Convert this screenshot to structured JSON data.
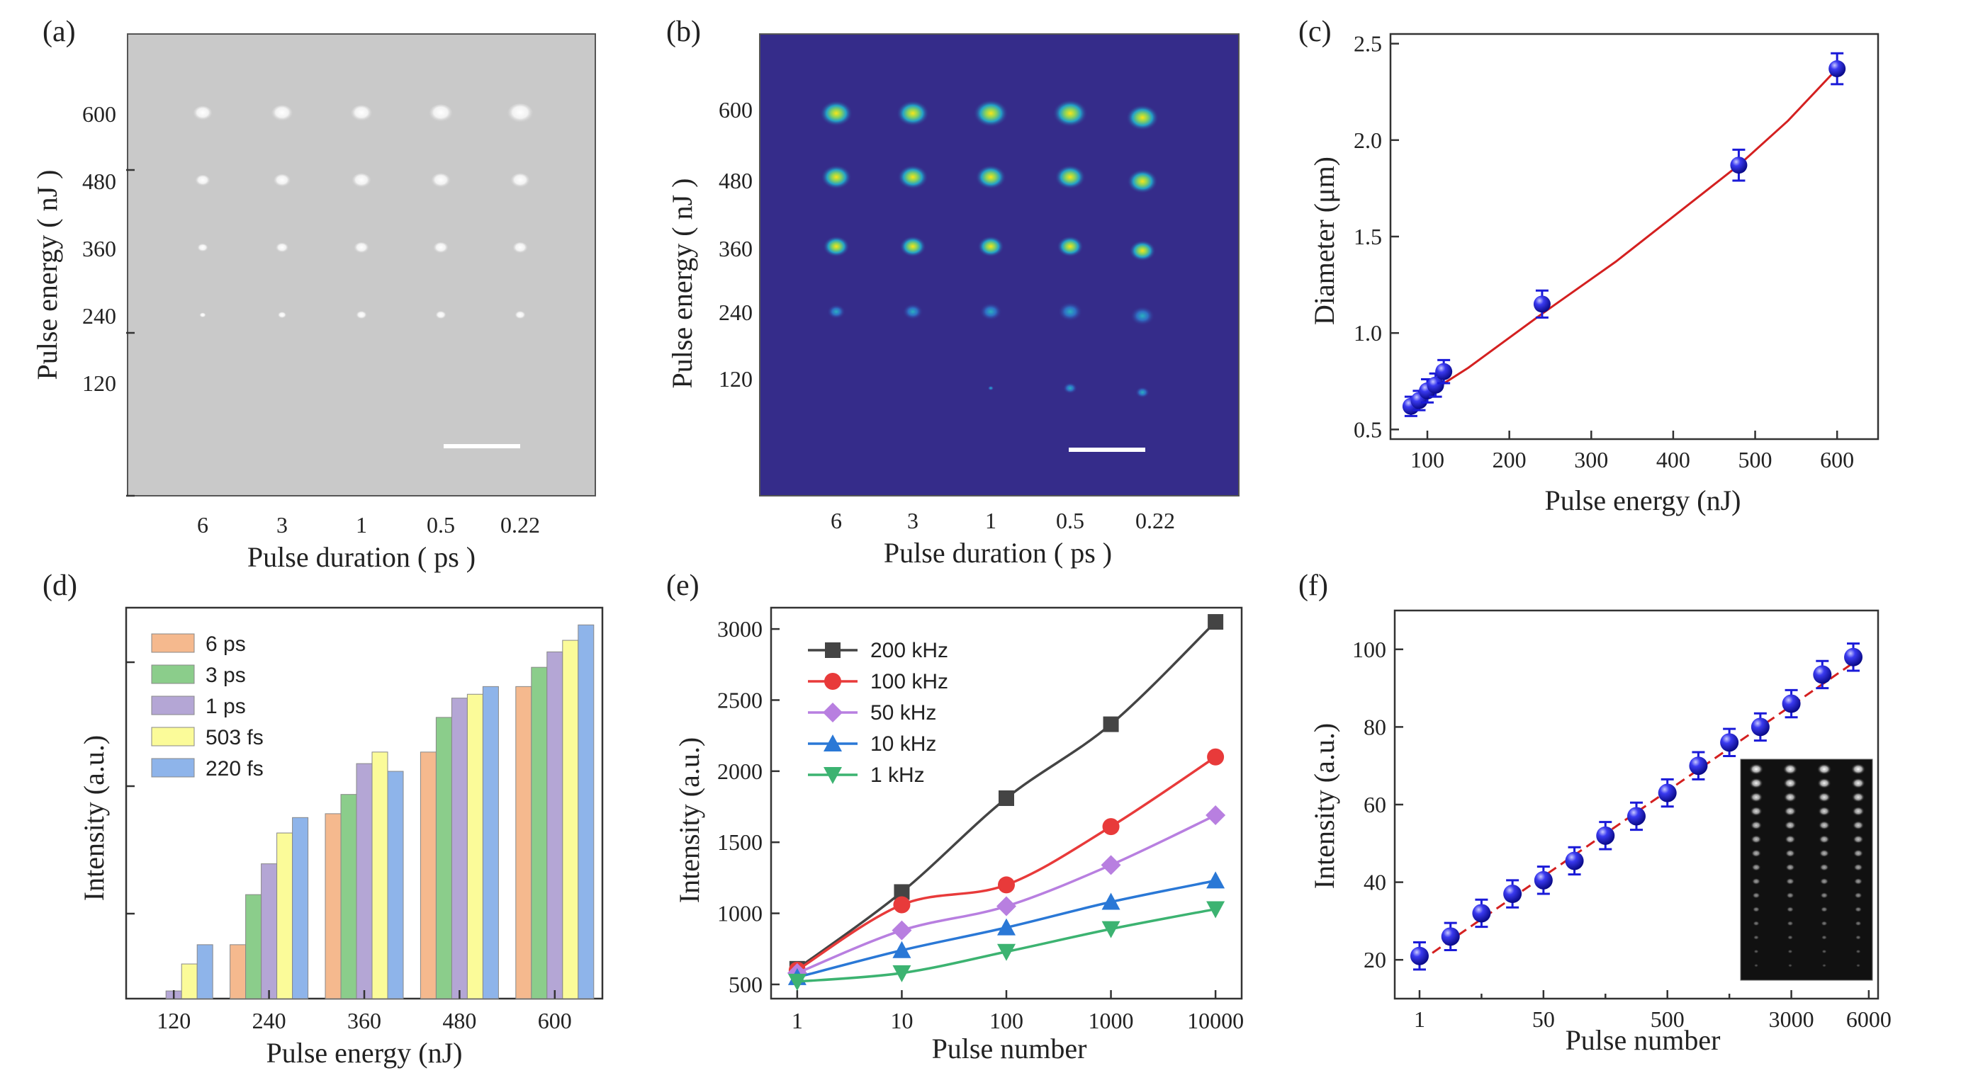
{
  "panels": {
    "a": {
      "tag": "(a)",
      "ylabel": "Pulse energy ( nJ )",
      "xlabel": "Pulse duration ( ps )",
      "yticks": [
        "600",
        "480",
        "360",
        "240",
        "120"
      ],
      "xticks": [
        "6",
        "3",
        "1",
        "0.5",
        "0.22"
      ],
      "background": "#c9c9c9"
    },
    "b": {
      "tag": "(b)",
      "ylabel": "Pulse energy ( nJ )",
      "xlabel": "Pulse duration ( ps )",
      "yticks": [
        "600",
        "480",
        "360",
        "240",
        "120"
      ],
      "xticks": [
        "6",
        "3",
        "1",
        "0.5",
        "0.22"
      ],
      "background": "#352c8a"
    },
    "inset_f": {
      "background": "#111111"
    }
  },
  "chart_data": [
    {
      "id": "c",
      "tag": "(c)",
      "type": "scatter",
      "xlabel": "Pulse energy (nJ)",
      "ylabel": "Diameter (μm)",
      "xlim": [
        55,
        650
      ],
      "ylim": [
        0.45,
        2.55
      ],
      "xticks": [
        100,
        200,
        300,
        400,
        500,
        600
      ],
      "yticks": [
        0.5,
        1.0,
        1.5,
        2.0,
        2.5
      ],
      "xtick_labels": [
        "100",
        "200",
        "300",
        "400",
        "500",
        "600"
      ],
      "ytick_labels": [
        "0.5",
        "1.0",
        "1.5",
        "2.0",
        "2.5"
      ],
      "x": [
        80,
        90,
        100,
        110,
        120,
        240,
        480,
        600
      ],
      "y": [
        0.62,
        0.65,
        0.7,
        0.73,
        0.8,
        1.15,
        1.87,
        2.37
      ],
      "err": [
        0.05,
        0.05,
        0.06,
        0.06,
        0.06,
        0.07,
        0.08,
        0.08
      ],
      "fit": {
        "x": [
          80,
          150,
          240,
          330,
          420,
          480,
          540,
          600
        ],
        "y": [
          0.63,
          0.82,
          1.1,
          1.37,
          1.67,
          1.87,
          2.1,
          2.37
        ],
        "color": "#d42020"
      },
      "marker_color": "#1a1ad8"
    },
    {
      "id": "d",
      "tag": "(d)",
      "type": "bar",
      "xlabel": "Pulse energy (nJ)",
      "ylabel": "Intensity (a.u.)",
      "categories": [
        "120",
        "240",
        "360",
        "480",
        "600"
      ],
      "ylim": [
        0,
        100
      ],
      "series": [
        {
          "name": "6 ps",
          "color": "#f5b98e",
          "values": [
            0,
            14,
            48,
            64,
            81
          ]
        },
        {
          "name": "3 ps",
          "color": "#8bcd8b",
          "values": [
            0,
            27,
            53,
            73,
            86
          ]
        },
        {
          "name": "1 ps",
          "color": "#b4a6d5",
          "values": [
            2,
            35,
            61,
            78,
            90
          ]
        },
        {
          "name": "503 fs",
          "color": "#fbfb99",
          "values": [
            9,
            43,
            64,
            79,
            93
          ]
        },
        {
          "name": "220 fs",
          "color": "#8eb4ea",
          "values": [
            14,
            47,
            59,
            81,
            97
          ]
        }
      ]
    },
    {
      "id": "e",
      "tag": "(e)",
      "type": "line",
      "xlabel": "Pulse number",
      "ylabel": "Intensity (a.u.)",
      "xscale": "log",
      "x": [
        1,
        10,
        100,
        1000,
        10000
      ],
      "xtick_labels": [
        "1",
        "10",
        "100",
        "1000",
        "10000"
      ],
      "ylim": [
        400,
        3150
      ],
      "yticks": [
        500,
        1000,
        1500,
        2000,
        2500,
        3000
      ],
      "ytick_labels": [
        "500",
        "1000",
        "1500",
        "2000",
        "2500",
        "3000"
      ],
      "series": [
        {
          "name": "200 kHz",
          "color": "#444444",
          "marker": "square",
          "values": [
            610,
            1150,
            1810,
            2330,
            3050
          ]
        },
        {
          "name": "100 kHz",
          "color": "#e83a3a",
          "marker": "circle",
          "values": [
            600,
            1060,
            1200,
            1610,
            2100
          ]
        },
        {
          "name": "50 kHz",
          "color": "#b87fe0",
          "marker": "diamond",
          "values": [
            580,
            880,
            1050,
            1340,
            1690
          ]
        },
        {
          "name": "10 kHz",
          "color": "#2a78d6",
          "marker": "triangle-up",
          "values": [
            550,
            740,
            900,
            1080,
            1230
          ]
        },
        {
          "name": "1 kHz",
          "color": "#3cb371",
          "marker": "triangle-down",
          "values": [
            520,
            580,
            730,
            890,
            1030
          ]
        }
      ]
    },
    {
      "id": "f",
      "tag": "(f)",
      "type": "scatter",
      "xlabel": "Pulse number",
      "ylabel": "Intensity (a.u.)",
      "xlim": [
        -0.8,
        14.8
      ],
      "ylim": [
        10,
        110
      ],
      "yticks": [
        20,
        40,
        60,
        80,
        100
      ],
      "ytick_labels": [
        "20",
        "40",
        "60",
        "80",
        "100"
      ],
      "xtick_positions": [
        0,
        4,
        8,
        12,
        14.5
      ],
      "xtick_labels": [
        "1",
        "50",
        "500",
        "3000",
        "6000"
      ],
      "minor_xtick_positions": [
        2,
        6,
        10
      ],
      "x": [
        0,
        1,
        2,
        3,
        4,
        5,
        6,
        7,
        8,
        9,
        10,
        11,
        12,
        13,
        14
      ],
      "y": [
        21,
        26,
        32,
        37,
        40.5,
        45.5,
        52,
        57,
        63,
        70,
        76,
        80,
        86,
        93.5,
        98
      ],
      "err": [
        3.5,
        3.5,
        3.5,
        3.5,
        3.5,
        3.5,
        3.5,
        3.5,
        3.5,
        3.5,
        3.5,
        3.5,
        3.5,
        3.5,
        3.5
      ],
      "fit": {
        "x": [
          0,
          14
        ],
        "y": [
          19.5,
          96.5
        ],
        "color": "#d42020"
      },
      "marker_color": "#1a1ad8"
    }
  ]
}
